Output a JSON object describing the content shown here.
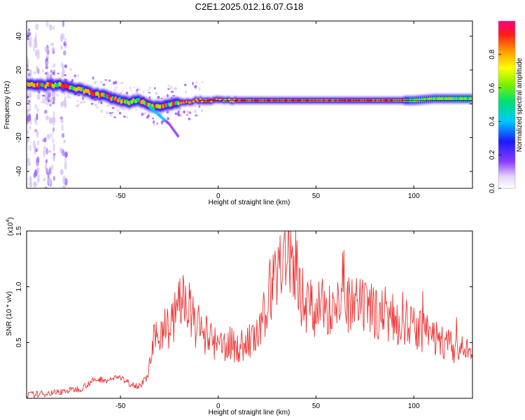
{
  "title": "C2E1.2025.012.16.07.G18",
  "chart_data": [
    {
      "type": "heatmap",
      "xlabel": "Height of straight line (km)",
      "ylabel": "Frequency (Hz)",
      "xlim": [
        -98,
        130
      ],
      "ylim": [
        -50,
        49
      ],
      "xticks": [
        -50,
        0,
        50,
        100
      ],
      "yticks": [
        -40,
        -20,
        0,
        20,
        40
      ],
      "colorbar": {
        "label": "Normalized spectral amplitude",
        "range": [
          0,
          1
        ],
        "ticks": [
          0.0,
          0.2,
          0.4,
          0.6,
          0.8
        ],
        "tick_labels": [
          "0.0",
          "0.2",
          "0.4",
          "0.6",
          "0.8"
        ]
      },
      "ridge": {
        "x": [
          -98,
          -90,
          -80,
          -70,
          -60,
          -50,
          -45,
          -40,
          -35,
          -30,
          -25,
          -20,
          -10,
          0,
          10,
          20,
          40,
          60,
          80,
          100,
          110,
          120,
          130
        ],
        "freq": [
          11,
          11,
          11,
          8,
          5,
          2,
          1,
          2,
          -1,
          -2,
          0,
          1,
          2,
          2,
          2,
          2,
          2,
          2,
          2,
          2,
          3,
          3,
          3
        ]
      },
      "branch": {
        "x": [
          -35,
          -30,
          -25,
          -20
        ],
        "freq": [
          -2,
          -7,
          -12,
          -20
        ]
      },
      "reference_line_freq": 2,
      "low_altitude_noise_x": [
        -97,
        -93,
        -88,
        -85,
        -79
      ]
    },
    {
      "type": "line",
      "xlabel": "Height of straight line (km)",
      "ylabel": "SNR (10 * v/v)",
      "ymultiplier_label": "(x10",
      "ymultiplier_exp": "4",
      "ymultiplier_close": ")",
      "xlim": [
        -98,
        130
      ],
      "ylim": [
        0,
        1.5
      ],
      "xticks": [
        -50,
        0,
        50,
        100
      ],
      "yticks": [
        0.5,
        1.0,
        1.5
      ],
      "ytick_labels": [
        "0.5",
        "1.0",
        "1.5"
      ],
      "series": [
        {
          "name": "SNR",
          "color": "#ee3333",
          "x": [
            -98,
            -90,
            -80,
            -70,
            -65,
            -60,
            -55,
            -52,
            -45,
            -40,
            -36,
            -33,
            -30,
            -28,
            -25,
            -22,
            -20,
            -18,
            -15,
            -12,
            -10,
            -5,
            0,
            5,
            10,
            15,
            20,
            22,
            25,
            28,
            30,
            33,
            36,
            40,
            42,
            45,
            50,
            55,
            60,
            65,
            70,
            75,
            80,
            85,
            90,
            95,
            100,
            105,
            110,
            115,
            120,
            125,
            130
          ],
          "y": [
            0.03,
            0.04,
            0.06,
            0.09,
            0.15,
            0.17,
            0.16,
            0.2,
            0.13,
            0.11,
            0.2,
            0.5,
            0.55,
            0.7,
            0.6,
            0.75,
            0.85,
            0.9,
            0.8,
            0.65,
            0.6,
            0.55,
            0.45,
            0.5,
            0.45,
            0.5,
            0.55,
            0.6,
            0.9,
            1.05,
            1.15,
            1.25,
            1.3,
            1.2,
            0.95,
            0.85,
            0.8,
            0.82,
            0.85,
            0.82,
            0.82,
            0.8,
            0.78,
            0.75,
            0.7,
            0.68,
            0.62,
            0.6,
            0.55,
            0.5,
            0.45,
            0.42,
            0.4
          ]
        }
      ]
    }
  ]
}
